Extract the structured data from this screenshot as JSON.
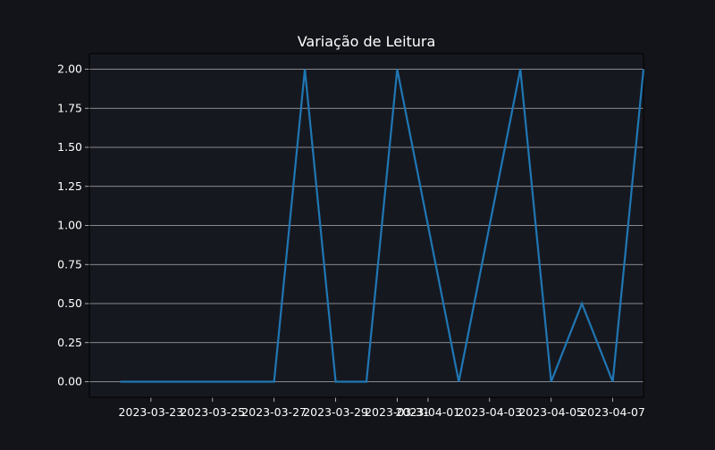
{
  "chart_data": {
    "type": "line",
    "title": "Variação de Leitura",
    "xlabel": "",
    "ylabel": "",
    "x": [
      "2023-03-22",
      "2023-03-23",
      "2023-03-24",
      "2023-03-25",
      "2023-03-26",
      "2023-03-27",
      "2023-03-28",
      "2023-03-29",
      "2023-03-30",
      "2023-03-31",
      "2023-04-01",
      "2023-04-02",
      "2023-04-03",
      "2023-04-04",
      "2023-04-05",
      "2023-04-06",
      "2023-04-07",
      "2023-04-08"
    ],
    "series": [
      {
        "values": [
          0,
          0,
          0,
          0,
          0,
          0,
          2,
          0,
          0,
          2,
          1,
          0,
          1,
          2,
          0,
          0.5,
          0,
          2
        ]
      }
    ],
    "x_ticks": [
      "2023-03-23",
      "2023-03-25",
      "2023-03-27",
      "2023-03-29",
      "2023-03-31",
      "2023-04-01",
      "2023-04-03",
      "2023-04-05",
      "2023-04-07"
    ],
    "y_ticks": [
      "0.00",
      "0.25",
      "0.50",
      "0.75",
      "1.00",
      "1.25",
      "1.50",
      "1.75",
      "2.00"
    ],
    "xlim": [
      "2023-03-21",
      "2023-04-08"
    ],
    "ylim": [
      -0.1,
      2.1
    ],
    "grid": "horizontal",
    "colors": {
      "background": "#131419",
      "plot_background": "#161820",
      "line": "#1f77b4",
      "grid": "#b0b0b0",
      "text": "#ffffff",
      "axis": "#d0d0d0"
    }
  }
}
